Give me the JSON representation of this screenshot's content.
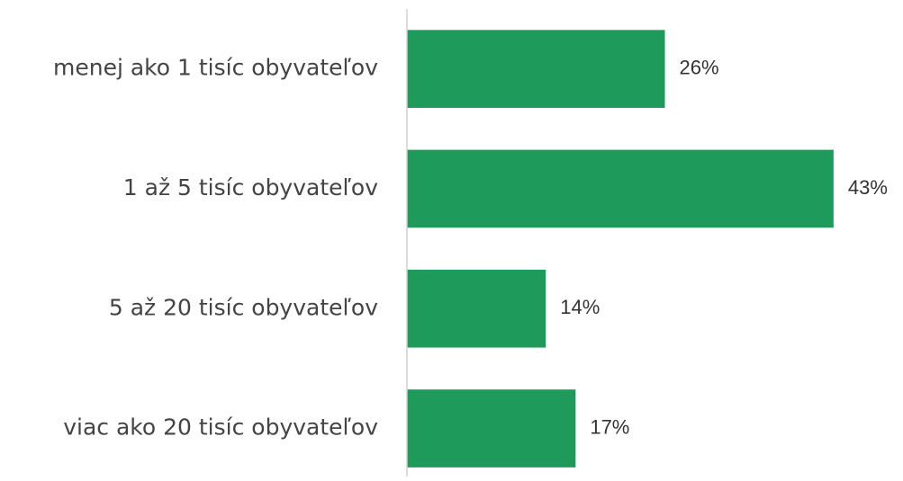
{
  "chart_data": {
    "type": "hbar",
    "categories": [
      "menej ako 1 tisíc obyvateľov",
      "1 až 5 tisíc obyvateľov",
      "5 až 20 tisíc obyvateľov",
      "viac ako 20 tisíc obyvateľov"
    ],
    "values": [
      26,
      43,
      14,
      17
    ],
    "value_labels": [
      "26%",
      "43%",
      "14%",
      "17%"
    ],
    "color": "#1e9b5b",
    "xlim": [
      0,
      50
    ]
  }
}
